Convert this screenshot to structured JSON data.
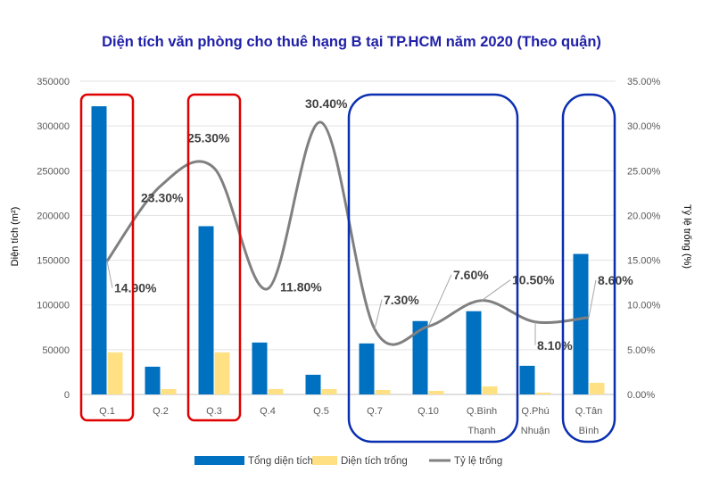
{
  "chart_data": {
    "type": "bar",
    "title": "Diện tích văn phòng cho thuê hạng B tại TP.HCM năm 2020 (Theo quận)",
    "ylabel": "Diện tích (m²)",
    "y2label": "Tỷ lệ trống (%)",
    "ylim": [
      0,
      350000
    ],
    "y2lim": [
      0,
      35
    ],
    "grid": true,
    "legend_position": "bottom",
    "yticks": [
      "0",
      "50000",
      "100000",
      "150000",
      "200000",
      "250000",
      "300000",
      "350000"
    ],
    "y2ticks": [
      "0.00%",
      "5.00%",
      "10.00%",
      "15.00%",
      "20.00%",
      "25.00%",
      "30.00%",
      "35.00%"
    ],
    "categories": [
      [
        "Q.1"
      ],
      [
        "Q.2"
      ],
      [
        "Q.3"
      ],
      [
        "Q.4"
      ],
      [
        "Q.5"
      ],
      [
        "Q.7"
      ],
      [
        "Q.10"
      ],
      [
        "Q.Bình",
        "Thạnh"
      ],
      [
        "Q.Phú",
        "Nhuận"
      ],
      [
        "Q.Tân",
        "Bình"
      ]
    ],
    "series": [
      {
        "name": "Tổng diện tích",
        "type": "bar",
        "axis": "left",
        "color": "#0070c0",
        "values": [
          322000,
          31000,
          188000,
          58000,
          22000,
          57000,
          82000,
          93000,
          32000,
          157000
        ]
      },
      {
        "name": "Diện tích trống",
        "type": "bar",
        "axis": "left",
        "color": "#ffe083",
        "values": [
          47000,
          6000,
          47000,
          6000,
          6000,
          5000,
          4000,
          9000,
          2000,
          13000
        ]
      },
      {
        "name": "Tỷ lệ trống",
        "type": "line",
        "axis": "right",
        "color": "#808080",
        "values": [
          14.9,
          23.3,
          25.3,
          11.8,
          30.4,
          7.3,
          7.6,
          10.5,
          8.1,
          8.6
        ],
        "labels": [
          "14.90%",
          "23.30%",
          "25.30%",
          "11.80%",
          "30.40%",
          "7.30%",
          "7.60%",
          "10.50%",
          "8.10%",
          "8.60%"
        ]
      }
    ],
    "annotations": {
      "red_boxes": [
        "Q.1",
        "Q.3"
      ],
      "blue_boxes": [
        [
          "Q.7",
          "Q.10",
          "Q.Bình Thạnh"
        ],
        [
          "Q.Tân Bình"
        ]
      ],
      "red_color": "#e00000",
      "blue_color": "#0a2fb0"
    }
  }
}
